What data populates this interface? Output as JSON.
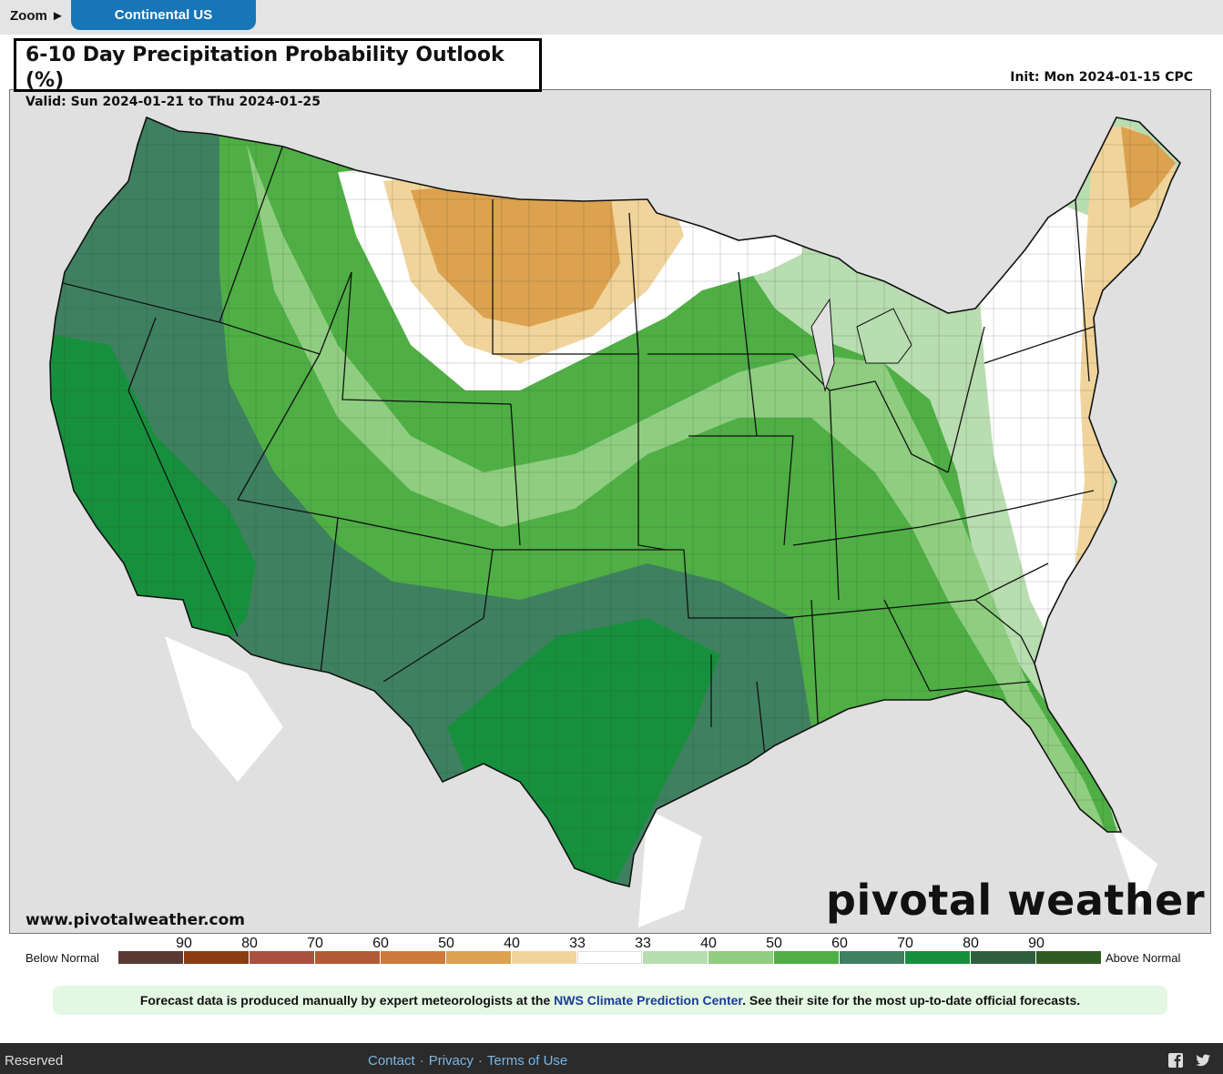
{
  "zoom": {
    "label": "Zoom ►",
    "region": "Continental US"
  },
  "map": {
    "title": "6-10 Day Precipitation Probability Outlook (%)",
    "valid": "Valid: Sun 2024-01-21 to Thu 2024-01-25",
    "init": "Init: Mon 2024-01-15 CPC",
    "site": "www.pivotalweather.com",
    "logo": "pivotal weather"
  },
  "legend": {
    "below_label": "Below Normal",
    "above_label": "Above Normal",
    "ticks": [
      "90",
      "80",
      "70",
      "60",
      "50",
      "40",
      "33",
      "33",
      "40",
      "50",
      "60",
      "70",
      "80",
      "90"
    ],
    "colors": [
      "#5b3a33",
      "#8b3c12",
      "#a8513e",
      "#b35a35",
      "#cd7a3a",
      "#dca24f",
      "#f0d49b",
      "#ffffff",
      "#b8ddb0",
      "#8fce80",
      "#4faf45",
      "#3f8060",
      "#17903d",
      "#2f5f3f",
      "#2f5c22"
    ]
  },
  "notice": {
    "before": "Forecast data is produced manually by expert meteorologists at the ",
    "link": "NWS Climate Prediction Center",
    "after": ". See their site for the most up-to-date official forecasts."
  },
  "footer": {
    "reserved": "Reserved",
    "links": [
      "Contact",
      "Privacy",
      "Terms of Use"
    ],
    "icons": [
      "facebook-icon",
      "twitter-icon"
    ]
  }
}
